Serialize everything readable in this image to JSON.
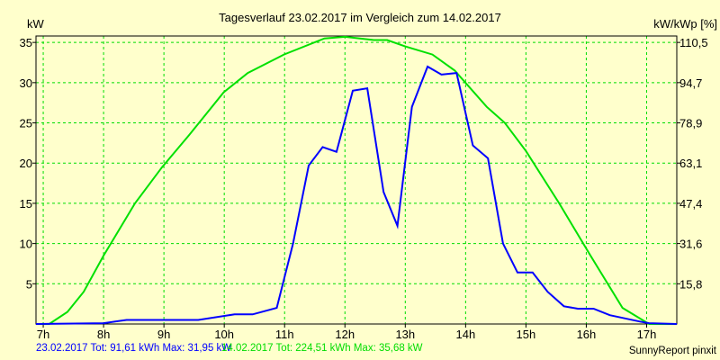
{
  "chart_data": {
    "type": "line",
    "title": "Tagesverlauf 23.02.2017 im Vergleich zum 14.02.2017",
    "ylabel": "kW",
    "y2label": "kW/kWp [%]",
    "xlim": [
      6.88,
      17.5
    ],
    "ylim": [
      0,
      35.8
    ],
    "grid": true,
    "x_ticks": [
      {
        "v": 7,
        "l": "7h"
      },
      {
        "v": 8,
        "l": "8h"
      },
      {
        "v": 9,
        "l": "9h"
      },
      {
        "v": 10,
        "l": "10h"
      },
      {
        "v": 11,
        "l": "11h"
      },
      {
        "v": 12,
        "l": "12h"
      },
      {
        "v": 13,
        "l": "13h"
      },
      {
        "v": 14,
        "l": "14h"
      },
      {
        "v": 15,
        "l": "15h"
      },
      {
        "v": 16,
        "l": "16h"
      },
      {
        "v": 17,
        "l": "17h"
      }
    ],
    "y_ticks": [
      {
        "v": 5,
        "l": "5"
      },
      {
        "v": 10,
        "l": "10"
      },
      {
        "v": 15,
        "l": "15"
      },
      {
        "v": 20,
        "l": "20"
      },
      {
        "v": 25,
        "l": "25"
      },
      {
        "v": 30,
        "l": "30"
      },
      {
        "v": 35,
        "l": "35"
      }
    ],
    "y2_ticks": [
      {
        "v": 5,
        "l": "15,8"
      },
      {
        "v": 10,
        "l": "31,6"
      },
      {
        "v": 15,
        "l": "47,4"
      },
      {
        "v": 20,
        "l": "63,1"
      },
      {
        "v": 25,
        "l": "78,9"
      },
      {
        "v": 30,
        "l": "94,7"
      },
      {
        "v": 35,
        "l": "110,5"
      }
    ],
    "series": [
      {
        "name": "23.02.2017",
        "color": "#0000ff",
        "x": [
          6.88,
          8.0,
          8.38,
          9.57,
          10.17,
          10.47,
          10.87,
          11.14,
          11.4,
          11.63,
          11.86,
          12.13,
          12.37,
          12.64,
          12.87,
          13.11,
          13.37,
          13.6,
          13.85,
          14.12,
          14.37,
          14.62,
          14.86,
          15.11,
          15.36,
          15.63,
          15.86,
          16.12,
          16.39,
          16.89,
          17.04,
          17.5
        ],
        "y": [
          0,
          0.1,
          0.5,
          0.5,
          1.2,
          1.2,
          2,
          10,
          19.7,
          22,
          21.4,
          29,
          29.3,
          16.4,
          12.2,
          27,
          32,
          31,
          31.2,
          22.2,
          20.6,
          10,
          6.4,
          6.4,
          4,
          2.2,
          1.9,
          1.9,
          1.1,
          0.3,
          0.1,
          0
        ]
      },
      {
        "name": "14.02.2017",
        "color": "#00e000",
        "x": [
          6.88,
          7.1,
          7.4,
          7.67,
          8.0,
          8.52,
          8.97,
          9.42,
          9.99,
          10.39,
          10.99,
          11.66,
          12.0,
          12.48,
          12.7,
          13.0,
          13.45,
          13.82,
          14.35,
          14.65,
          15.0,
          15.55,
          16.07,
          16.6,
          17.04,
          17.5
        ],
        "y": [
          0,
          0,
          1.5,
          4,
          8.5,
          15,
          19.5,
          23.5,
          28.8,
          31.2,
          33.5,
          35.5,
          35.7,
          35.3,
          35.3,
          34.5,
          33.5,
          31.5,
          27,
          25,
          21.5,
          15,
          8.5,
          2,
          0,
          0
        ]
      }
    ]
  },
  "footer": {
    "blue_text": "23.02.2017 Tot: 91,61 kWh Max: 31,95 kW",
    "green_text": "14.02.2017 Tot: 224,51 kWh Max: 35,68 kW",
    "credit": "SunnyReport pinxit"
  }
}
